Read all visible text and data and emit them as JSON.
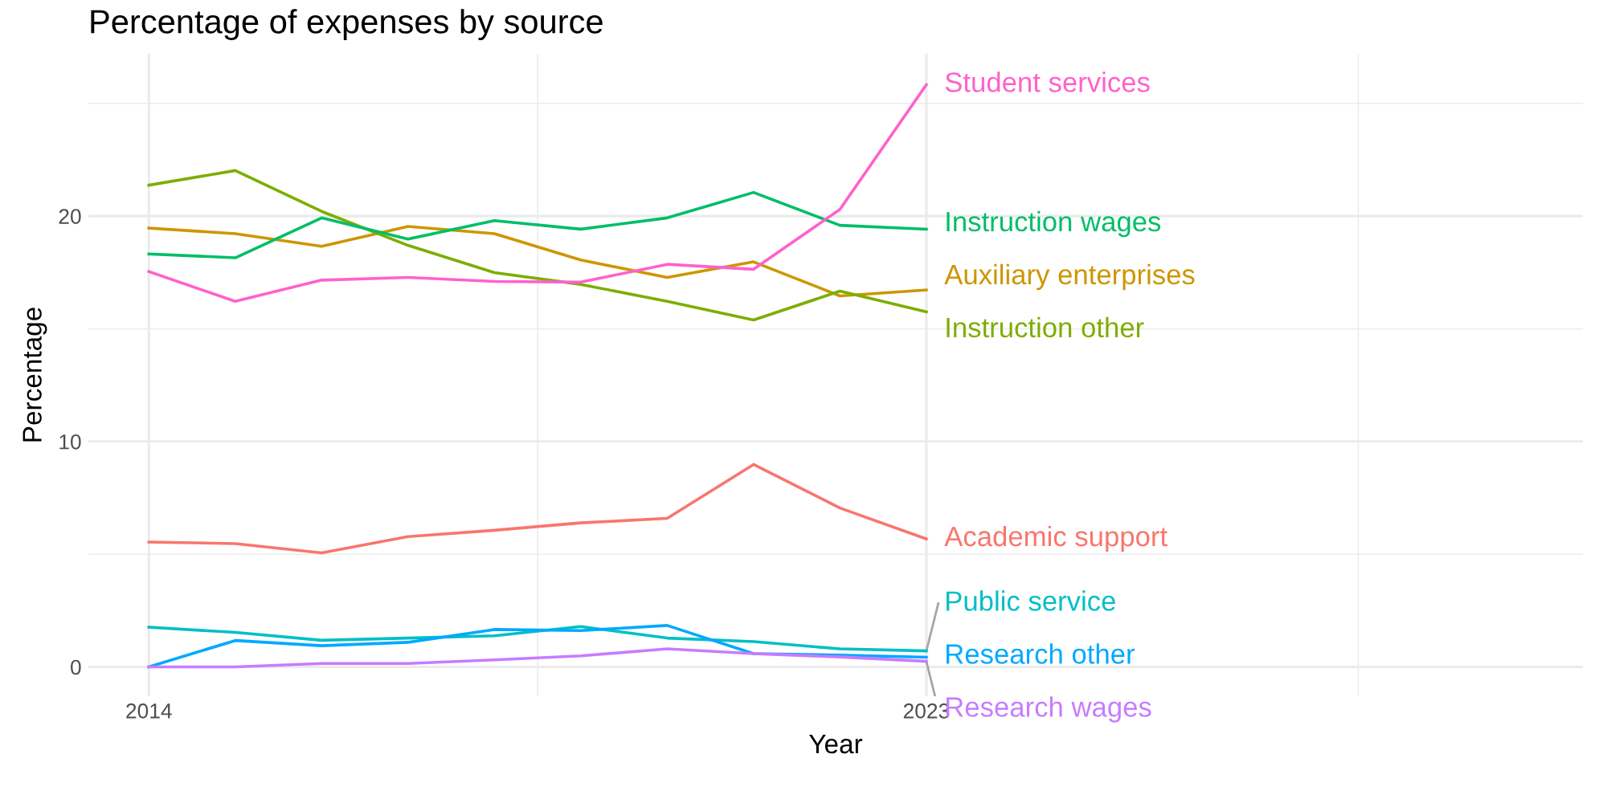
{
  "chart_data": {
    "type": "line",
    "title": "Percentage of expenses by source",
    "xlabel": "Year",
    "ylabel": "Percentage",
    "x": [
      2014,
      2015,
      2016,
      2017,
      2018,
      2019,
      2020,
      2021,
      2022,
      2023
    ],
    "xlim": [
      2013.3,
      2030.6
    ],
    "xticks": [
      2014,
      {
        "value": 2018.5,
        "label": null
      },
      2023,
      {
        "value": 2028,
        "label": null
      }
    ],
    "ylim": [
      -1.3,
      27.2
    ],
    "yticks": [
      0,
      {
        "value": 5,
        "label": null
      },
      10,
      {
        "value": 15,
        "label": null
      },
      20,
      {
        "value": 25,
        "label": null
      }
    ],
    "grid": true,
    "legend": false,
    "marker": "none",
    "line_style": "solid",
    "series": [
      {
        "name": "Academic support",
        "color": "#f8766d",
        "values": [
          5.54,
          5.47,
          5.06,
          5.78,
          6.06,
          6.39,
          6.59,
          8.98,
          7.05,
          5.68
        ]
      },
      {
        "name": "Auxiliary enterprises",
        "color": "#cd9600",
        "values": [
          19.47,
          19.22,
          18.66,
          19.54,
          19.22,
          18.05,
          17.28,
          17.97,
          16.46,
          16.72
        ]
      },
      {
        "name": "Instruction other",
        "color": "#7cae00",
        "values": [
          21.37,
          22.02,
          20.21,
          18.7,
          17.49,
          16.97,
          16.22,
          15.39,
          16.67,
          15.75
        ]
      },
      {
        "name": "Instruction wages",
        "color": "#00be67",
        "values": [
          18.32,
          18.15,
          19.92,
          18.98,
          19.8,
          19.42,
          19.92,
          21.05,
          19.59,
          19.42
        ]
      },
      {
        "name": "Public service",
        "color": "#00bfc4",
        "values": [
          1.76,
          1.53,
          1.18,
          1.28,
          1.38,
          1.79,
          1.28,
          1.12,
          0.8,
          0.71
        ]
      },
      {
        "name": "Research other",
        "color": "#00a9ff",
        "values": [
          0,
          1.17,
          0.94,
          1.09,
          1.66,
          1.61,
          1.84,
          0.59,
          0.52,
          0.43
        ]
      },
      {
        "name": "Research wages",
        "color": "#c77cff",
        "values": [
          0,
          0,
          0.15,
          0.15,
          0.31,
          0.49,
          0.8,
          0.59,
          0.44,
          0.25
        ]
      },
      {
        "name": "Student services",
        "color": "#ff61cc",
        "values": [
          17.54,
          16.22,
          17.16,
          17.28,
          17.1,
          17.07,
          17.86,
          17.64,
          20.3,
          25.83
        ]
      }
    ]
  }
}
